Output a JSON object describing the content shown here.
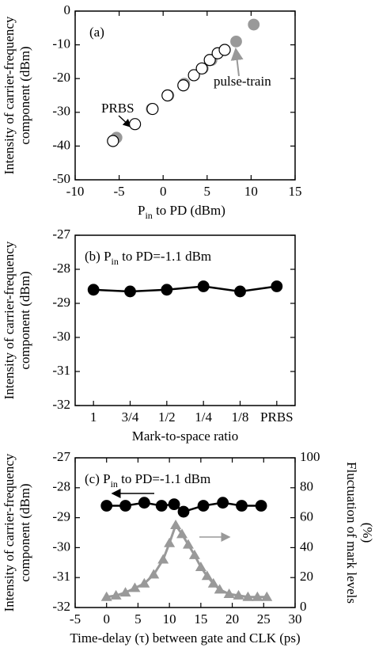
{
  "chart_data": [
    {
      "type": "scatter",
      "label": "(a)",
      "xlabel": [
        "P",
        "in",
        " to PD (dBm)"
      ],
      "ylabel": [
        "Intensity of carrier-frequency",
        "component (dBm)"
      ],
      "xlim": [
        -10,
        15
      ],
      "xticks": [
        -10,
        -5,
        0,
        5,
        10,
        15
      ],
      "ylim": [
        -50,
        0
      ],
      "yticks": [
        -50,
        -40,
        -30,
        -20,
        -10,
        0
      ],
      "series": [
        {
          "name": "pulse-train",
          "color": "#999999",
          "marker": "filled",
          "x": [
            -5.3,
            -1.3,
            0.6,
            2.4,
            4.5,
            5.5,
            7.0,
            8.3,
            10.3
          ],
          "values": [
            -37.5,
            -29,
            -25,
            -21.5,
            -17,
            -14.5,
            -11.5,
            -9,
            -4
          ]
        },
        {
          "name": "PRBS",
          "color": "#000000",
          "marker": "open",
          "x": [
            -5.7,
            -3.2,
            -1.2,
            0.5,
            2.3,
            3.5,
            4.4,
            5.3,
            6.2,
            7.0
          ],
          "values": [
            -38.5,
            -33.5,
            -29,
            -25,
            -22,
            -19,
            -17,
            -14.5,
            -12.5,
            -11.5
          ]
        }
      ]
    },
    {
      "type": "line",
      "annotation": [
        "(b) P",
        "in",
        " to PD=-1.1 dBm"
      ],
      "xlabel": "Mark-to-space ratio",
      "ylabel": [
        "Intensity of carrier-frequency",
        "component (dBm)"
      ],
      "categories": [
        "1",
        "3/4",
        "1/2",
        "1/4",
        "1/8",
        "PRBS"
      ],
      "ylim": [
        -32,
        -27
      ],
      "yticks": [
        -32,
        -31,
        -30,
        -29,
        -28,
        -27
      ],
      "series": [
        {
          "color": "#000000",
          "marker": "filled",
          "values": [
            -28.6,
            -28.65,
            -28.6,
            -28.5,
            -28.65,
            -28.5
          ]
        }
      ]
    },
    {
      "type": "line",
      "annotation": [
        "(c) P",
        "in",
        " to PD=-1.1 dBm"
      ],
      "xlabel": "Time-delay (τ) between gate and CLK (ps)",
      "ylabel": [
        "Intensity of carrier-frequency",
        "component (dBm)"
      ],
      "y2label": [
        "Fluctuation of mark levels",
        "(%)"
      ],
      "xlim": [
        -5,
        30
      ],
      "xticks": [
        -5,
        0,
        5,
        10,
        15,
        20,
        25,
        30
      ],
      "ylim": [
        -32,
        -27
      ],
      "yticks": [
        -32,
        -31,
        -30,
        -29,
        -28,
        -27
      ],
      "y2lim": [
        0,
        100
      ],
      "y2ticks": [
        0,
        20,
        40,
        60,
        80,
        100
      ],
      "series": [
        {
          "color": "#000000",
          "marker": "filled",
          "x": [
            0,
            3,
            6,
            8.75,
            10.75,
            12.25,
            15.4,
            18.5,
            21.5,
            24.6
          ],
          "values": [
            -28.6,
            -28.6,
            -28.5,
            -28.6,
            -28.55,
            -28.8,
            -28.6,
            -28.5,
            -28.6,
            -28.6
          ]
        },
        {
          "color": "#999999",
          "marker": "triangle",
          "axis": "y2",
          "x": [
            0,
            1.5,
            3,
            4.5,
            6,
            7.5,
            9,
            10,
            11,
            12,
            13,
            14,
            15,
            16,
            17,
            18,
            19.5,
            21,
            22.5,
            24,
            25.5
          ],
          "values": [
            7,
            8,
            10,
            13,
            16,
            22,
            32,
            43,
            55,
            49,
            42,
            35,
            27,
            21,
            16,
            12,
            9,
            8,
            7,
            7,
            7
          ]
        }
      ]
    }
  ]
}
